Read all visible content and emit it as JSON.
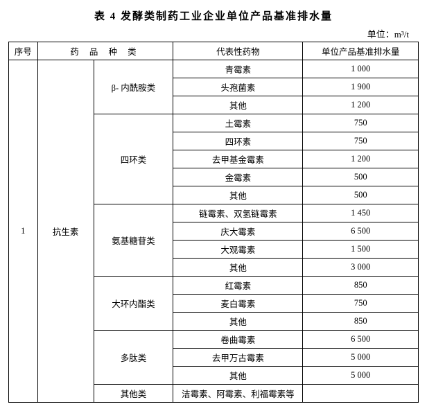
{
  "title": "表 4  发酵类制药工业企业单位产品基准排水量",
  "unit": "单位：m³/t",
  "header": {
    "seq": "序号",
    "category": "药 品 种 类",
    "drug": "代表性药物",
    "value": "单位产品基准排水量"
  },
  "seq_no": "1",
  "main_cat": "抗生素",
  "groups": [
    {
      "name": "β- 内酰胺类",
      "rows": [
        {
          "drug": "青霉素",
          "val": "1 000"
        },
        {
          "drug": "头孢菌素",
          "val": "1 900"
        },
        {
          "drug": "其他",
          "val": "1 200"
        }
      ]
    },
    {
      "name": "四环类",
      "rows": [
        {
          "drug": "土霉素",
          "val": "750"
        },
        {
          "drug": "四环素",
          "val": "750"
        },
        {
          "drug": "去甲基金霉素",
          "val": "1 200"
        },
        {
          "drug": "金霉素",
          "val": "500"
        },
        {
          "drug": "其他",
          "val": "500"
        }
      ]
    },
    {
      "name": "氨基糖苷类",
      "rows": [
        {
          "drug": "链霉素、双氢链霉素",
          "val": "1 450"
        },
        {
          "drug": "庆大霉素",
          "val": "6 500"
        },
        {
          "drug": "大观霉素",
          "val": "1 500"
        },
        {
          "drug": "其他",
          "val": "3 000"
        }
      ]
    },
    {
      "name": "大环内酯类",
      "rows": [
        {
          "drug": "红霉素",
          "val": "850"
        },
        {
          "drug": "麦白霉素",
          "val": "750"
        },
        {
          "drug": "其他",
          "val": "850"
        }
      ]
    },
    {
      "name": "多肽类",
      "rows": [
        {
          "drug": "卷曲霉素",
          "val": "6 500"
        },
        {
          "drug": "去甲万古霉素",
          "val": "5 000"
        },
        {
          "drug": "其他",
          "val": "5 000"
        }
      ]
    },
    {
      "name": "其他类",
      "rows": [
        {
          "drug": "洁霉素、阿霉素、利福霉素等",
          "val": ""
        }
      ]
    }
  ]
}
